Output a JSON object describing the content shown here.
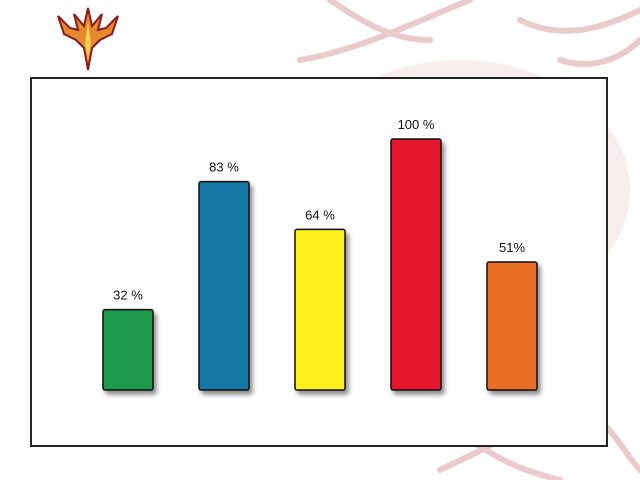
{
  "chart_data": {
    "type": "bar",
    "categories": [
      "",
      "",
      "",
      "",
      ""
    ],
    "values": [
      32,
      83,
      64,
      100,
      51
    ],
    "labels": [
      "32 %",
      "83 %",
      "64 %",
      "100 %",
      "51%"
    ],
    "colors": [
      "#1e9a48",
      "#1878a6",
      "#fdf01e",
      "#e5172f",
      "#eb6e27"
    ],
    "title": "",
    "xlabel": "",
    "ylabel": "",
    "ylim": [
      0,
      100
    ],
    "grid": false,
    "legend": "none"
  },
  "logo": {
    "icon": "phoenix-icon"
  }
}
